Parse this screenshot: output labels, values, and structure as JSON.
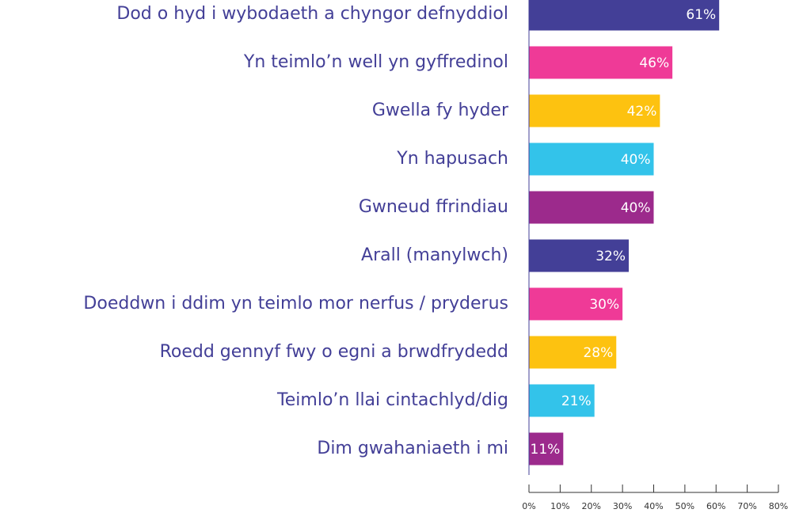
{
  "chart_data": {
    "type": "barh",
    "categories": [
      "Dod o hyd i wybodaeth a chyngor defnyddiol",
      "Yn teimlo’n well yn gyffredinol",
      "Gwella fy hyder",
      "Yn hapusach",
      "Gwneud ffrindiau",
      "Arall (manylwch)",
      "Doeddwn i ddim yn teimlo mor nerfus / pryderus",
      "Roedd gennyf fwy o egni a brwdfrydedd",
      "Teimlo’n llai cintachlyd/dig",
      "Dim gwahaniaeth i mi"
    ],
    "values": [
      61,
      46,
      42,
      40,
      40,
      32,
      30,
      28,
      21,
      11
    ],
    "value_labels": [
      "61%",
      "46%",
      "42%",
      "40%",
      "40%",
      "32%",
      "30%",
      "28%",
      "21%",
      "11%"
    ],
    "colors": [
      "#433f97",
      "#ef3a97",
      "#fdc210",
      "#33c3ea",
      "#9c2a8c",
      "#433f97",
      "#ef3a97",
      "#fdc210",
      "#33c3ea",
      "#9c2a8c"
    ],
    "xlim": [
      0,
      80
    ],
    "xticks": [
      {
        "value": 0,
        "label": "0%"
      },
      {
        "value": 10,
        "label": "10%"
      },
      {
        "value": 20,
        "label": "20%"
      },
      {
        "value": 30,
        "label": "30%"
      },
      {
        "value": 40,
        "label": "40%"
      },
      {
        "value": 50,
        "label": "50%"
      },
      {
        "value": 60,
        "label": "60%"
      },
      {
        "value": 70,
        "label": "70%"
      },
      {
        "value": 80,
        "label": "80%"
      }
    ]
  }
}
